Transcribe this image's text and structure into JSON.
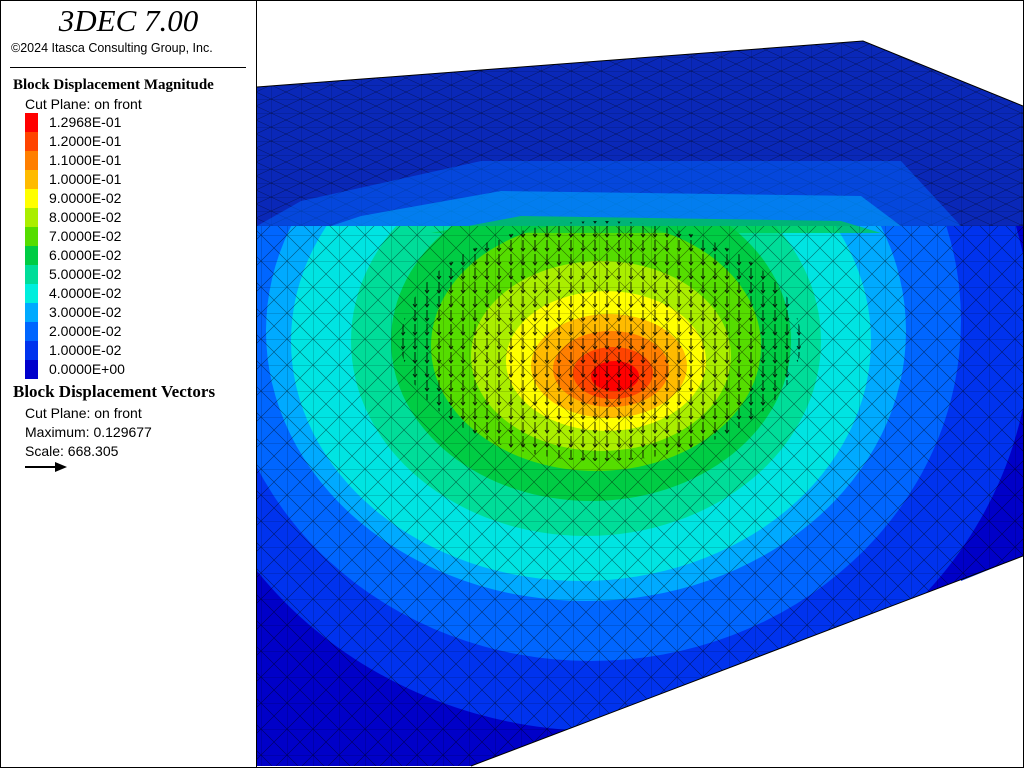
{
  "app": {
    "title": "3DEC 7.00",
    "copyright": "©2024 Itasca Consulting Group, Inc."
  },
  "legend": {
    "magnitude": {
      "title": "Block  Displacement Magnitude",
      "cut_plane": "Cut Plane: on front",
      "entries": [
        {
          "label": "1.2968E-01",
          "color": "#ff0000"
        },
        {
          "label": "1.2000E-01",
          "color": "#ff4400"
        },
        {
          "label": "1.1000E-01",
          "color": "#ff7f00"
        },
        {
          "label": "1.0000E-01",
          "color": "#ffbb00"
        },
        {
          "label": "9.0000E-02",
          "color": "#ffff00"
        },
        {
          "label": "8.0000E-02",
          "color": "#aaee00"
        },
        {
          "label": "7.0000E-02",
          "color": "#55dd00"
        },
        {
          "label": "6.0000E-02",
          "color": "#00cc44"
        },
        {
          "label": "5.0000E-02",
          "color": "#00dd99"
        },
        {
          "label": "4.0000E-02",
          "color": "#00eedd"
        },
        {
          "label": "3.0000E-02",
          "color": "#00aaff"
        },
        {
          "label": "2.0000E-02",
          "color": "#0066ff"
        },
        {
          "label": "1.0000E-02",
          "color": "#0033ee"
        },
        {
          "label": "0.0000E+00",
          "color": "#0000cc"
        }
      ]
    },
    "vectors": {
      "title": "Block Displacement Vectors",
      "cut_plane": "Cut Plane: on front",
      "maximum": "Maximum: 0.129677",
      "scale": "Scale: 668.305"
    }
  }
}
